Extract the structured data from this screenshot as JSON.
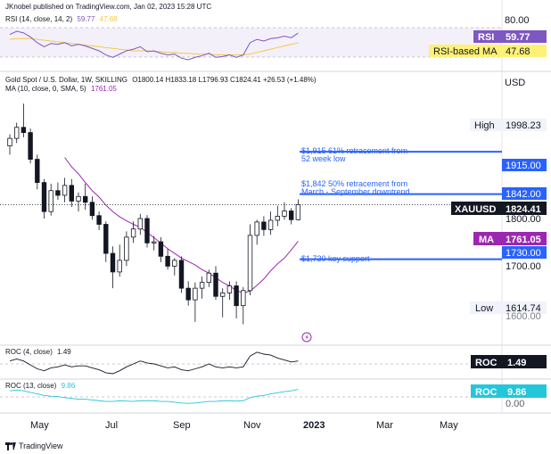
{
  "header": {
    "publisher": "JKnobel published on TradingView.com, Jan 02, 2023 15:28 UTC"
  },
  "rsi_pane": {
    "legend_name": "RSI (14, close, 14, 2)",
    "legend_v1": "59.77",
    "legend_v2": "47.68",
    "axis_label": "80.00",
    "tag_rsi_label": "RSI",
    "tag_rsi_value": "59.77",
    "tag_ma_label": "RSI-based MA",
    "tag_ma_value": "47.68",
    "rsi_color": "#7e57c2",
    "ma_color": "#f2c94c"
  },
  "main_pane": {
    "symbol_line": "Gold Spot / U.S. Dollar, 1W, SKILLING",
    "ohlc": "O1800.14 H1833.18 L1796.93 C1824.41 +26.53 (+1.48%)",
    "ma_legend": "MA (10, close, 0, SMA, 5)",
    "ma_value": "1761.05",
    "currency": "USD",
    "high_label": "High",
    "high_value": "1998.23",
    "low_label": "Low",
    "low_value": "1614.74",
    "symbol_tag": "XAUUSD",
    "price_tag": "1824.41",
    "ma_tag_label": "MA",
    "ma_tag_value": "1761.05",
    "level_1915": "1915.00",
    "level_1842": "1842.00",
    "level_1730": "1730.00",
    "axis_1800": "1800.00",
    "axis_1700": "1700.00",
    "axis_1600": "1600.00",
    "annotation_1915_l1": "$1,915 61% retracement from",
    "annotation_1915_l2": "52 week low",
    "annotation_1842_l1": "$1,842 50% retracement from",
    "annotation_1842_l2": "March - September downtrend",
    "annotation_1730": "$1,730 key support",
    "level_color": "#2962ff",
    "ma_color": "#9c27b0",
    "up_color": "#ffffff",
    "down_color": "#131722"
  },
  "roc4_pane": {
    "legend_name": "ROC (4, close)",
    "legend_value": "1.49",
    "tag_label": "ROC",
    "tag_value": "1.49",
    "color": "#131722"
  },
  "roc13_pane": {
    "legend_name": "ROC (13, close)",
    "legend_value": "9.86",
    "tag_label": "ROC",
    "tag_value": "9.86",
    "color": "#26c6da",
    "axis_label": "0.00"
  },
  "time_axis": {
    "labels": [
      "May",
      "Jul",
      "Sep",
      "Nov",
      "2023",
      "Mar",
      "May"
    ]
  },
  "footer": {
    "brand": "TradingView"
  },
  "chart_data": {
    "type": "candlestick",
    "timeframe": "1W",
    "y_range": [
      1585,
      2015
    ],
    "candles": [
      {
        "o": 1925,
        "h": 1945,
        "l": 1910,
        "c": 1938
      },
      {
        "o": 1938,
        "h": 1965,
        "l": 1930,
        "c": 1957
      },
      {
        "o": 1957,
        "h": 1998,
        "l": 1940,
        "c": 1948
      },
      {
        "o": 1948,
        "h": 1955,
        "l": 1895,
        "c": 1902
      },
      {
        "o": 1902,
        "h": 1910,
        "l": 1850,
        "c": 1862
      },
      {
        "o": 1862,
        "h": 1868,
        "l": 1800,
        "c": 1812
      },
      {
        "o": 1812,
        "h": 1860,
        "l": 1805,
        "c": 1848
      },
      {
        "o": 1848,
        "h": 1862,
        "l": 1832,
        "c": 1840
      },
      {
        "o": 1840,
        "h": 1870,
        "l": 1828,
        "c": 1857
      },
      {
        "o": 1857,
        "h": 1868,
        "l": 1820,
        "c": 1830
      },
      {
        "o": 1830,
        "h": 1845,
        "l": 1812,
        "c": 1838
      },
      {
        "o": 1838,
        "h": 1860,
        "l": 1815,
        "c": 1828
      },
      {
        "o": 1828,
        "h": 1838,
        "l": 1798,
        "c": 1805
      },
      {
        "o": 1805,
        "h": 1812,
        "l": 1780,
        "c": 1790
      },
      {
        "o": 1790,
        "h": 1795,
        "l": 1725,
        "c": 1740
      },
      {
        "o": 1740,
        "h": 1752,
        "l": 1680,
        "c": 1708
      },
      {
        "o": 1708,
        "h": 1755,
        "l": 1700,
        "c": 1728
      },
      {
        "o": 1728,
        "h": 1778,
        "l": 1718,
        "c": 1768
      },
      {
        "o": 1768,
        "h": 1795,
        "l": 1758,
        "c": 1782
      },
      {
        "o": 1782,
        "h": 1808,
        "l": 1772,
        "c": 1800
      },
      {
        "o": 1800,
        "h": 1806,
        "l": 1750,
        "c": 1758
      },
      {
        "o": 1758,
        "h": 1770,
        "l": 1745,
        "c": 1760
      },
      {
        "o": 1760,
        "h": 1768,
        "l": 1725,
        "c": 1735
      },
      {
        "o": 1735,
        "h": 1748,
        "l": 1712,
        "c": 1718
      },
      {
        "o": 1718,
        "h": 1732,
        "l": 1702,
        "c": 1728
      },
      {
        "o": 1728,
        "h": 1735,
        "l": 1672,
        "c": 1680
      },
      {
        "o": 1680,
        "h": 1692,
        "l": 1650,
        "c": 1660
      },
      {
        "o": 1660,
        "h": 1690,
        "l": 1622,
        "c": 1680
      },
      {
        "o": 1680,
        "h": 1700,
        "l": 1662,
        "c": 1690
      },
      {
        "o": 1690,
        "h": 1712,
        "l": 1682,
        "c": 1706
      },
      {
        "o": 1706,
        "h": 1718,
        "l": 1660,
        "c": 1666
      },
      {
        "o": 1666,
        "h": 1680,
        "l": 1630,
        "c": 1672
      },
      {
        "o": 1672,
        "h": 1692,
        "l": 1660,
        "c": 1684
      },
      {
        "o": 1684,
        "h": 1692,
        "l": 1628,
        "c": 1650
      },
      {
        "o": 1650,
        "h": 1682,
        "l": 1618,
        "c": 1676
      },
      {
        "o": 1676,
        "h": 1790,
        "l": 1668,
        "c": 1771
      },
      {
        "o": 1771,
        "h": 1798,
        "l": 1755,
        "c": 1794
      },
      {
        "o": 1794,
        "h": 1804,
        "l": 1770,
        "c": 1781
      },
      {
        "o": 1781,
        "h": 1812,
        "l": 1772,
        "c": 1797
      },
      {
        "o": 1797,
        "h": 1822,
        "l": 1787,
        "c": 1804
      },
      {
        "o": 1804,
        "h": 1828,
        "l": 1798,
        "c": 1813
      },
      {
        "o": 1813,
        "h": 1818,
        "l": 1790,
        "c": 1798
      },
      {
        "o": 1798,
        "h": 1833,
        "l": 1797,
        "c": 1824
      }
    ],
    "ma_10_sma": [
      null,
      null,
      null,
      null,
      null,
      null,
      null,
      null,
      1905,
      1889,
      1877,
      1862,
      1848,
      1837,
      1823,
      1812,
      1803,
      1796,
      1790,
      1785,
      1776,
      1767,
      1758,
      1748,
      1740,
      1732,
      1726,
      1720,
      1712,
      1706,
      1698,
      1690,
      1684,
      1676,
      1672,
      1675,
      1685,
      1696,
      1710,
      1722,
      1732,
      1746,
      1761
    ],
    "levels": [
      1915,
      1842,
      1730
    ],
    "rsi_14": [
      58,
      62,
      60,
      55,
      48,
      43,
      47,
      46,
      48,
      44,
      46,
      44,
      41,
      38,
      33,
      30,
      34,
      38,
      40,
      43,
      37,
      38,
      35,
      33,
      34,
      29,
      27,
      30,
      32,
      35,
      30,
      31,
      33,
      30,
      33,
      48,
      52,
      50,
      53,
      54,
      56,
      54,
      59.77
    ],
    "rsi_ma": [
      52,
      53,
      53,
      53,
      52,
      51,
      50,
      49,
      48,
      47,
      46,
      45,
      44,
      43,
      42,
      41,
      40,
      39,
      38,
      38,
      38,
      37,
      37,
      36,
      36,
      35,
      35,
      34,
      34,
      34,
      33,
      33,
      33,
      33,
      33,
      34,
      36,
      38,
      40,
      42,
      44,
      46,
      47.68
    ],
    "roc_4": [
      1.5,
      2.5,
      1.5,
      -0.5,
      -2.5,
      -3.5,
      -2,
      -1.5,
      -0.5,
      -1.5,
      -1,
      -1,
      -2,
      -3,
      -4.5,
      -5,
      -3.5,
      -1.5,
      0,
      1.5,
      0.5,
      0,
      -1,
      -2,
      -1.5,
      -3,
      -3.5,
      -2.5,
      -1.5,
      0,
      -1.5,
      -2,
      -1.5,
      -2,
      -1.5,
      4,
      6,
      5,
      4.5,
      3,
      2,
      1,
      1.49
    ],
    "roc_13": [
      8,
      9,
      8,
      6,
      4,
      2,
      1,
      0.5,
      -1,
      -2,
      -3,
      -3,
      -4,
      -5,
      -6,
      -6,
      -5,
      -5.5,
      -6,
      -5,
      -5,
      -5,
      -6,
      -6,
      -7,
      -8,
      -8.5,
      -8,
      -7,
      -6,
      -6,
      -5,
      -5,
      -5.5,
      -5,
      -1,
      1,
      2,
      4,
      5.5,
      7,
      8,
      9.86
    ]
  }
}
